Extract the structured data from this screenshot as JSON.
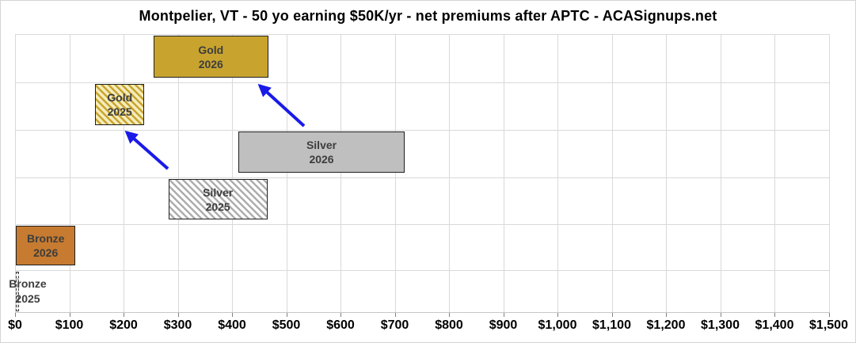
{
  "chart_data": {
    "type": "bar",
    "subtype": "floating-range-horizontal",
    "title": "Montpelier, VT - 50 yo earning $50K/yr - net premiums after APTC - ACASignups.net",
    "xlabel": "",
    "ylabel": "",
    "x_unit": "USD per month",
    "xlim": [
      0,
      1500
    ],
    "x_tick_step": 100,
    "x_tick_labels": [
      "$0",
      "$100",
      "$200",
      "$300",
      "$400",
      "$500",
      "$600",
      "$700",
      "$800",
      "$900",
      "$1,000",
      "$1,100",
      "$1,200",
      "$1,300",
      "$1,400",
      "$1,500"
    ],
    "grid": true,
    "legend_position": "none",
    "series": [
      {
        "id": "gold-2026",
        "label_line1": "Gold",
        "label_line2": "2026",
        "range_usd": [
          255,
          467
        ],
        "fill": "solid",
        "color": "#C8A42F",
        "hatch_bg": null,
        "border": "solid",
        "label_outside": false
      },
      {
        "id": "gold-2025",
        "label_line1": "Gold",
        "label_line2": "2025",
        "range_usd": [
          148,
          238
        ],
        "fill": "hatched",
        "color": "#C8A42F",
        "hatch_bg": "#F4ECBB",
        "border": "solid",
        "label_outside": false
      },
      {
        "id": "silver-2026",
        "label_line1": "Silver",
        "label_line2": "2026",
        "range_usd": [
          412,
          718
        ],
        "fill": "solid",
        "color": "#BFBFBF",
        "hatch_bg": null,
        "border": "solid",
        "label_outside": false
      },
      {
        "id": "silver-2025",
        "label_line1": "Silver",
        "label_line2": "2025",
        "range_usd": [
          283,
          465
        ],
        "fill": "hatched",
        "color": "#ADADAD",
        "hatch_bg": "#FFFFFF",
        "border": "solid",
        "label_outside": false
      },
      {
        "id": "bronze-2026",
        "label_line1": "Bronze",
        "label_line2": "2026",
        "range_usd": [
          2,
          111
        ],
        "fill": "solid",
        "color": "#C77B30",
        "hatch_bg": null,
        "border": "solid",
        "label_outside": false
      },
      {
        "id": "bronze-2025",
        "label_line1": "Bronze",
        "label_line2": "2025",
        "range_usd": [
          1,
          7
        ],
        "fill": "hatched",
        "color": "#C9C9C9",
        "hatch_bg": "#FFFFFF",
        "border": "dashed",
        "label_outside": true
      }
    ],
    "annotations": [
      {
        "type": "arrow",
        "from": "silver-2026",
        "to": "gold-2026",
        "color": "#1A1AE8"
      },
      {
        "type": "arrow",
        "from": "silver-2025",
        "to": "gold-2025",
        "color": "#1A1AE8"
      }
    ]
  }
}
